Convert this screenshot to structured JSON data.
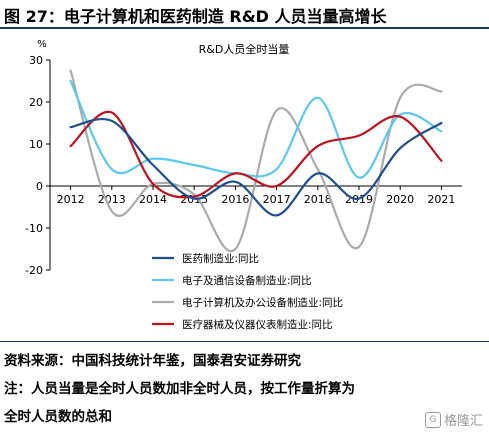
{
  "figure_title": "图 27：电子计算机和医药制造 R&D 人员当量高增长",
  "source": "资料来源：中国科技统计年鉴，国泰君安证券研究",
  "note_line1": "注：人员当量是全时人员数加非全时人员，按工作量折算为",
  "note_line2": "全时人员数的总和",
  "watermark": "格隆汇",
  "watermark_icon": "G",
  "chart_data": {
    "type": "line",
    "title": "R&D人员全时当量",
    "ylabel": "%",
    "xlabel": "",
    "ylim": [
      -20,
      30
    ],
    "yticks": [
      -20,
      -10,
      0,
      10,
      20,
      30
    ],
    "categories": [
      "2012",
      "2013",
      "2014",
      "2015",
      "2016",
      "2017",
      "2018",
      "2019",
      "2020",
      "2021"
    ],
    "grid": false,
    "legend_position": "bottom-left",
    "line_style": "smooth",
    "series": [
      {
        "name": "医药制造业:同比",
        "color": "#1f4e8c",
        "values": [
          14,
          15.5,
          5,
          -3,
          1,
          -7,
          3,
          -3,
          9,
          15
        ]
      },
      {
        "name": "电子及通信设备制造业:同比",
        "color": "#5bc8f0",
        "values": [
          25,
          4,
          6.5,
          5,
          3,
          4,
          21,
          2,
          17,
          13
        ]
      },
      {
        "name": "电子计算机及办公设备制造业:同比",
        "color": "#ababab",
        "values": [
          27.5,
          -6,
          0.5,
          -2,
          -15,
          18,
          4,
          -14.5,
          21,
          22.5
        ]
      },
      {
        "name": "医疗器械及仪器仪表制造业:同比",
        "color": "#c0121f",
        "values": [
          9.5,
          17.5,
          0.5,
          -2.5,
          3,
          0,
          9.5,
          12,
          16.5,
          6
        ]
      }
    ]
  }
}
